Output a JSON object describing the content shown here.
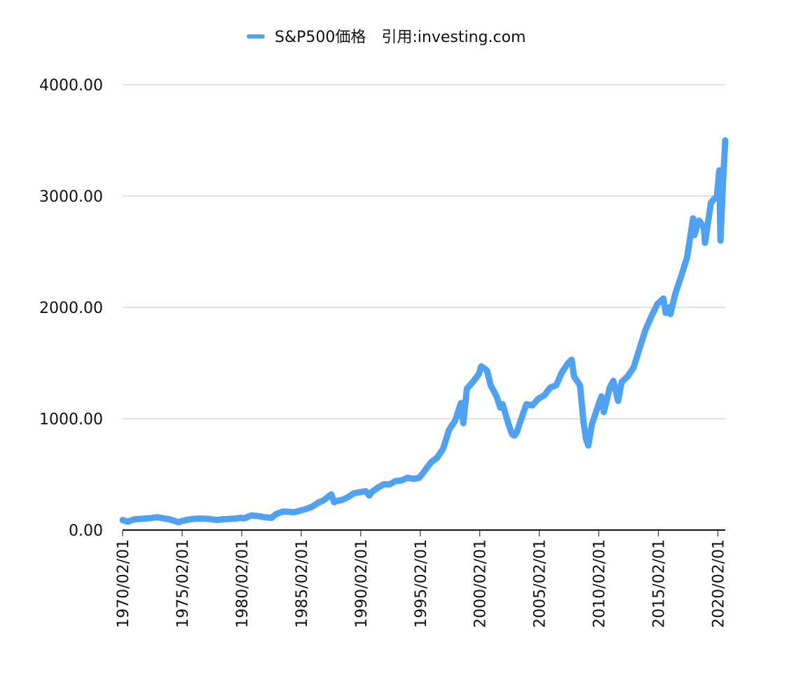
{
  "chart_data": {
    "type": "line",
    "legend": {
      "placement": "top-center",
      "label": "S&P500価格　引用:investing.com"
    },
    "colors": {
      "series": "#4ea2f1",
      "grid": "#c4c4c4",
      "axis": "#111111"
    },
    "ylim": [
      0,
      4000
    ],
    "yticks": [
      "0.00",
      "1000.00",
      "2000.00",
      "3000.00",
      "4000.00"
    ],
    "xlim": [
      1970.08,
      2020.7
    ],
    "xticks": [
      "1970/02/01",
      "1975/02/01",
      "1980/02/01",
      "1985/02/01",
      "1990/02/01",
      "1995/02/01",
      "2000/02/01",
      "2005/02/01",
      "2010/02/01",
      "2015/02/01",
      "2020/02/01"
    ],
    "grid": "horizontal",
    "series": [
      {
        "name": "S&P500価格　引用:investing.com",
        "x": [
          1970.08,
          1970.5,
          1971.0,
          1971.5,
          1972.0,
          1972.5,
          1973.0,
          1973.5,
          1974.0,
          1974.5,
          1974.8,
          1975.0,
          1975.5,
          1976.0,
          1976.5,
          1977.0,
          1977.5,
          1978.0,
          1978.5,
          1979.0,
          1979.5,
          1980.0,
          1980.3,
          1980.9,
          1981.5,
          1982.0,
          1982.6,
          1983.0,
          1983.5,
          1984.0,
          1984.5,
          1985.0,
          1985.5,
          1986.0,
          1986.5,
          1987.0,
          1987.6,
          1987.85,
          1988.0,
          1988.5,
          1989.0,
          1989.5,
          1990.0,
          1990.5,
          1990.8,
          1991.0,
          1991.5,
          1992.0,
          1992.5,
          1993.0,
          1993.5,
          1994.0,
          1994.5,
          1995.0,
          1995.5,
          1996.0,
          1996.5,
          1997.0,
          1997.5,
          1998.0,
          1998.5,
          1998.7,
          1999.0,
          1999.5,
          2000.0,
          2000.2,
          2000.5,
          2000.7,
          2001.0,
          2001.5,
          2001.8,
          2002.0,
          2002.5,
          2002.8,
          2003.0,
          2003.2,
          2003.5,
          2004.0,
          2004.5,
          2005.0,
          2005.5,
          2006.0,
          2006.5,
          2007.0,
          2007.5,
          2007.8,
          2008.0,
          2008.5,
          2008.8,
          2009.0,
          2009.2,
          2009.5,
          2010.0,
          2010.3,
          2010.5,
          2011.0,
          2011.3,
          2011.7,
          2012.0,
          2012.5,
          2013.0,
          2013.5,
          2014.0,
          2014.5,
          2015.0,
          2015.5,
          2015.7,
          2016.0,
          2016.1,
          2016.5,
          2017.0,
          2017.5,
          2018.0,
          2018.1,
          2018.5,
          2018.9,
          2019.0,
          2019.5,
          2020.0,
          2020.2,
          2020.3,
          2020.5,
          2020.7
        ],
        "values": [
          90,
          75,
          95,
          100,
          104,
          108,
          115,
          105,
          97,
          80,
          70,
          80,
          92,
          100,
          103,
          102,
          98,
          90,
          97,
          100,
          103,
          110,
          105,
          132,
          125,
          115,
          110,
          145,
          165,
          165,
          160,
          175,
          190,
          210,
          245,
          270,
          320,
          250,
          260,
          270,
          295,
          330,
          340,
          350,
          310,
          340,
          380,
          410,
          410,
          440,
          445,
          470,
          460,
          470,
          540,
          610,
          650,
          730,
          900,
          980,
          1140,
          960,
          1270,
          1330,
          1400,
          1470,
          1450,
          1430,
          1300,
          1200,
          1100,
          1130,
          950,
          860,
          850,
          880,
          980,
          1130,
          1120,
          1180,
          1210,
          1280,
          1300,
          1420,
          1500,
          1530,
          1380,
          1300,
          970,
          820,
          760,
          950,
          1110,
          1200,
          1060,
          1280,
          1340,
          1160,
          1330,
          1380,
          1460,
          1630,
          1800,
          1920,
          2030,
          2080,
          1950,
          2000,
          1940,
          2120,
          2280,
          2450,
          2800,
          2650,
          2780,
          2720,
          2580,
          2940,
          3000,
          3230,
          2600,
          3100,
          3500
        ]
      }
    ]
  }
}
